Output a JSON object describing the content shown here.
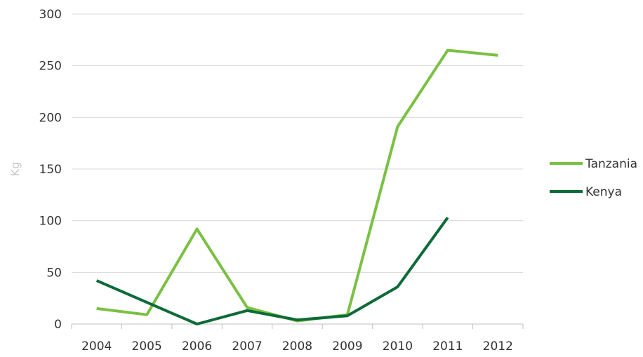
{
  "chart_data": {
    "type": "line",
    "title": "",
    "xlabel": "",
    "ylabel": "Kg",
    "categories": [
      "2004",
      "2005",
      "2006",
      "2007",
      "2008",
      "2009",
      "2010",
      "2011",
      "2012"
    ],
    "ylim": [
      0,
      300
    ],
    "yticks": [
      "0",
      "50",
      "100",
      "150",
      "200",
      "250",
      "300"
    ],
    "grid": true,
    "legend_position": "right",
    "series": [
      {
        "name": "Tanzania",
        "color": "#7ac143",
        "values": [
          15,
          9,
          92,
          16,
          3,
          9,
          191,
          265,
          260
        ]
      },
      {
        "name": "Kenya",
        "color": "#0b6b37",
        "values": [
          42,
          21,
          0,
          13,
          4,
          8,
          36,
          103,
          null
        ]
      }
    ]
  }
}
